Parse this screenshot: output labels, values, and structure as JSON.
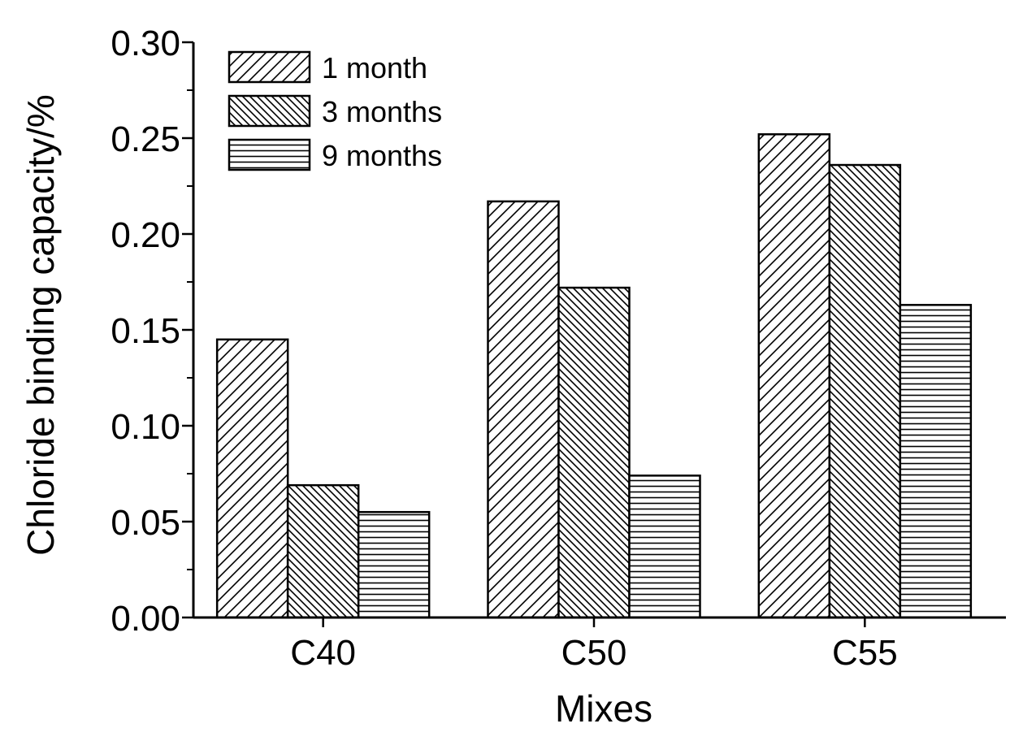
{
  "chart_data": {
    "type": "bar",
    "title": "",
    "xlabel": "Mixes",
    "ylabel": "Chloride binding capacity/%",
    "categories": [
      "C40",
      "C50",
      "C55"
    ],
    "series": [
      {
        "name": "1 month",
        "pattern": "hatch-diag-up",
        "values": [
          0.145,
          0.217,
          0.252
        ]
      },
      {
        "name": "3 months",
        "pattern": "hatch-diag-cross",
        "values": [
          0.069,
          0.172,
          0.236
        ]
      },
      {
        "name": "9 months",
        "pattern": "hatch-horizontal",
        "values": [
          0.055,
          0.074,
          0.163
        ]
      }
    ],
    "ylim": [
      0,
      0.3
    ],
    "yticks": [
      "0.00",
      "0.05",
      "0.10",
      "0.15",
      "0.20",
      "0.25",
      "0.30"
    ],
    "ytick_values": [
      0,
      0.05,
      0.1,
      0.15,
      0.2,
      0.25,
      0.3
    ],
    "grid": false,
    "legend_position": "top-left",
    "colors": {
      "stroke": "#000000",
      "fill": "#ffffff"
    }
  }
}
